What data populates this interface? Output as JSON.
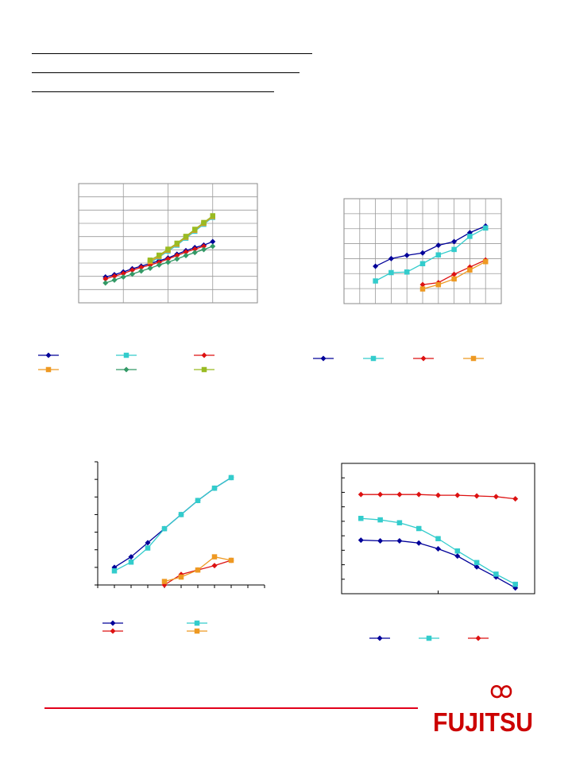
{
  "chart_data": [
    {
      "type": "line",
      "grid": true,
      "ylog": true,
      "xlim": [
        0,
        20
      ],
      "ylim": [
        0.1,
        100000
      ],
      "series": [
        {
          "color": "#000099",
          "marker": "diamond",
          "x": [
            3,
            4,
            5,
            6,
            7,
            8,
            9,
            10,
            11,
            12,
            13,
            14,
            15
          ],
          "y": [
            2,
            2.6,
            3.6,
            5.2,
            7,
            9.5,
            13,
            18,
            28,
            42,
            60,
            80,
            120
          ]
        },
        {
          "color": "#33cccc",
          "marker": "square",
          "x": [
            8,
            9,
            10,
            11,
            12,
            13,
            14,
            15
          ],
          "y": [
            10,
            20,
            40,
            80,
            180,
            400,
            900,
            2000
          ]
        },
        {
          "color": "#dd1111",
          "marker": "diamond",
          "x": [
            3,
            4,
            5,
            6,
            7,
            8,
            9,
            10,
            11,
            12,
            13,
            14
          ],
          "y": [
            1.6,
            2.2,
            3,
            4.4,
            6,
            8,
            11,
            16,
            24,
            36,
            50,
            70
          ]
        },
        {
          "color": "#ee9922",
          "marker": "square",
          "x": [
            8,
            9,
            10,
            11,
            12,
            13,
            14,
            15
          ],
          "y": [
            12,
            22,
            45,
            90,
            200,
            450,
            1000,
            2200
          ]
        },
        {
          "color": "#339966",
          "marker": "diamond",
          "x": [
            3,
            4,
            5,
            6,
            7,
            8,
            9,
            10,
            11,
            12,
            13,
            14,
            15
          ],
          "y": [
            1,
            1.4,
            2,
            2.8,
            4,
            5.5,
            8,
            11,
            16,
            24,
            34,
            48,
            70
          ]
        },
        {
          "color": "#99bb22",
          "marker": "square",
          "x": [
            8,
            9,
            10,
            11,
            12,
            13,
            14,
            15
          ],
          "y": [
            14,
            25,
            50,
            100,
            220,
            500,
            1100,
            2400
          ]
        }
      ]
    },
    {
      "type": "line",
      "grid": true,
      "ylog": true,
      "xlim": [
        0,
        10
      ],
      "ylim": [
        1,
        100000
      ],
      "series": [
        {
          "color": "#000099",
          "marker": "diamond",
          "x": [
            2,
            3,
            4,
            5,
            6,
            7,
            8,
            9
          ],
          "y": [
            60,
            140,
            200,
            260,
            600,
            900,
            2400,
            5000
          ]
        },
        {
          "color": "#33cccc",
          "marker": "square",
          "x": [
            2,
            3,
            4,
            5,
            6,
            7,
            8,
            9
          ],
          "y": [
            12,
            30,
            32,
            80,
            210,
            380,
            1600,
            4000
          ]
        },
        {
          "color": "#dd1111",
          "marker": "diamond",
          "x": [
            5,
            6,
            7,
            8,
            9
          ],
          "y": [
            8,
            10,
            25,
            55,
            120
          ]
        },
        {
          "color": "#ee9922",
          "marker": "square",
          "x": [
            5,
            6,
            7,
            8,
            9
          ],
          "y": [
            5,
            8,
            15,
            40,
            100
          ]
        }
      ]
    },
    {
      "type": "line",
      "grid": false,
      "ylog": false,
      "xlim": [
        0,
        10
      ],
      "ylim": [
        0,
        7
      ],
      "series": [
        {
          "color": "#000099",
          "marker": "diamond",
          "x": [
            1,
            2,
            3,
            4,
            5,
            6,
            7,
            8
          ],
          "y": [
            1,
            1.6,
            2.4,
            3.2,
            4.0,
            4.8,
            5.5,
            6.1
          ]
        },
        {
          "color": "#33cccc",
          "marker": "square",
          "x": [
            1,
            2,
            3,
            4,
            5,
            6,
            7,
            8
          ],
          "y": [
            0.8,
            1.3,
            2.1,
            3.2,
            4.0,
            4.8,
            5.5,
            6.1
          ]
        },
        {
          "color": "#dd1111",
          "marker": "diamond",
          "x": [
            4,
            5,
            6,
            7,
            8
          ],
          "y": [
            0,
            0.6,
            0.85,
            1.1,
            1.4
          ]
        },
        {
          "color": "#ee9922",
          "marker": "square",
          "x": [
            4,
            5,
            6,
            7,
            8
          ],
          "y": [
            0.2,
            0.45,
            0.85,
            1.6,
            1.4
          ]
        }
      ]
    },
    {
      "type": "line",
      "grid": false,
      "ylog": false,
      "xlim": [
        0,
        10
      ],
      "ylim": [
        0,
        9
      ],
      "series": [
        {
          "color": "#000099",
          "marker": "diamond",
          "x": [
            1,
            2,
            3,
            4,
            5,
            6,
            7,
            8,
            9
          ],
          "y": [
            3.7,
            3.65,
            3.65,
            3.5,
            3.1,
            2.6,
            1.85,
            1.15,
            0.4
          ]
        },
        {
          "color": "#33cccc",
          "marker": "square",
          "x": [
            1,
            2,
            3,
            4,
            5,
            6,
            7,
            8,
            9
          ],
          "y": [
            5.2,
            5.1,
            4.9,
            4.5,
            3.8,
            2.95,
            2.15,
            1.35,
            0.65
          ]
        },
        {
          "color": "#dd1111",
          "marker": "diamond",
          "x": [
            1,
            2,
            3,
            4,
            5,
            6,
            7,
            8,
            9
          ],
          "y": [
            6.85,
            6.85,
            6.85,
            6.85,
            6.8,
            6.8,
            6.75,
            6.7,
            6.55
          ]
        }
      ]
    }
  ],
  "colors": {
    "accent": "#e2001a",
    "logo": "#cc0000"
  },
  "logo": {
    "text": "FUJITSU"
  }
}
